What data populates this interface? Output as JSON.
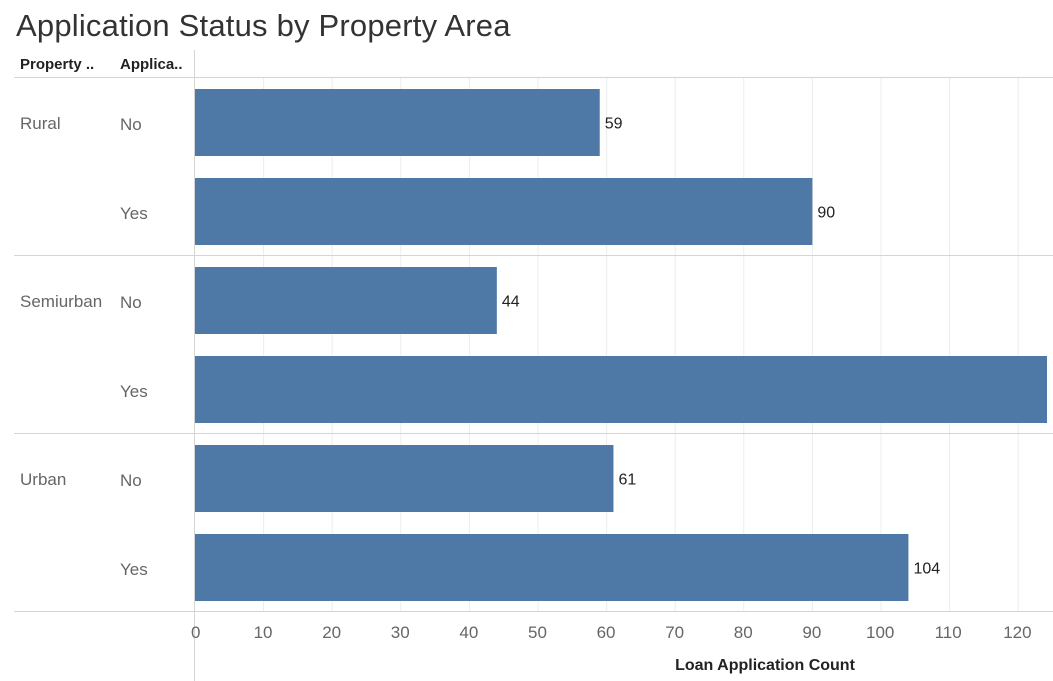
{
  "title": "Application Status by Property Area",
  "headers": {
    "area": "Property ..",
    "status": "Applica.."
  },
  "colors": {
    "bar": "#4e79a7",
    "grid": "#ececec",
    "divider": "#d4d4d4"
  },
  "chart_data": {
    "type": "bar",
    "orientation": "horizontal",
    "title": "Application Status by Property Area",
    "xlabel": "Loan Application Count",
    "xlim": [
      0,
      125
    ],
    "xticks": [
      0,
      10,
      20,
      30,
      40,
      50,
      60,
      70,
      80,
      90,
      100,
      110,
      120
    ],
    "grid": true,
    "groups": [
      {
        "area": "Rural",
        "rows": [
          {
            "status": "No",
            "value": 59,
            "label": "59"
          },
          {
            "status": "Yes",
            "value": 90,
            "label": "90"
          }
        ]
      },
      {
        "area": "Semiurban",
        "rows": [
          {
            "status": "No",
            "value": 44,
            "label": "44"
          },
          {
            "status": "Yes",
            "value": 125,
            "label": ""
          }
        ]
      },
      {
        "area": "Urban",
        "rows": [
          {
            "status": "No",
            "value": 61,
            "label": "61"
          },
          {
            "status": "Yes",
            "value": 104,
            "label": "104"
          }
        ]
      }
    ]
  }
}
